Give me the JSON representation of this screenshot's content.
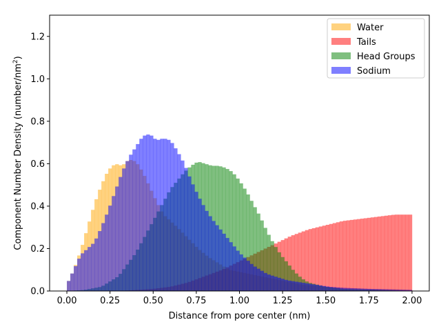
{
  "chart_data": {
    "type": "histogram",
    "xlabel": "Distance from pore center (nm)",
    "ylabel": "Component Number Density (number/nm",
    "ylabel_sup": "2",
    "ylabel_end": ")",
    "xlim": [
      -0.1,
      2.1
    ],
    "ylim": [
      0.0,
      1.3
    ],
    "xticks": [
      0.0,
      0.25,
      0.5,
      0.75,
      1.0,
      1.25,
      1.5,
      1.75,
      2.0
    ],
    "xtick_labels": [
      "0.00",
      "0.25",
      "0.50",
      "0.75",
      "1.00",
      "1.25",
      "1.50",
      "1.75",
      "2.00"
    ],
    "yticks": [
      0.0,
      0.2,
      0.4,
      0.6,
      0.8,
      1.0,
      1.2
    ],
    "ytick_labels": [
      "0.0",
      "0.2",
      "0.4",
      "0.6",
      "0.8",
      "1.0",
      "1.2"
    ],
    "legend_position": "top-right",
    "series": [
      {
        "name": "Water",
        "color": "#ffa500",
        "alpha": 0.5,
        "points": [
          [
            0.0,
            0.03
          ],
          [
            0.04,
            0.1
          ],
          [
            0.08,
            0.19
          ],
          [
            0.12,
            0.3
          ],
          [
            0.16,
            0.41
          ],
          [
            0.2,
            0.5
          ],
          [
            0.24,
            0.57
          ],
          [
            0.28,
            0.6
          ],
          [
            0.32,
            0.59
          ],
          [
            0.36,
            0.62
          ],
          [
            0.4,
            0.61
          ],
          [
            0.44,
            0.56
          ],
          [
            0.48,
            0.49
          ],
          [
            0.52,
            0.42
          ],
          [
            0.56,
            0.36
          ],
          [
            0.6,
            0.33
          ],
          [
            0.64,
            0.3
          ],
          [
            0.7,
            0.25
          ],
          [
            0.76,
            0.2
          ],
          [
            0.82,
            0.16
          ],
          [
            0.88,
            0.13
          ],
          [
            0.94,
            0.1
          ],
          [
            1.0,
            0.09
          ],
          [
            1.06,
            0.08
          ],
          [
            1.12,
            0.07
          ],
          [
            1.18,
            0.06
          ],
          [
            1.24,
            0.05
          ],
          [
            1.3,
            0.04
          ],
          [
            1.36,
            0.03
          ],
          [
            1.42,
            0.025
          ],
          [
            1.5,
            0.02
          ],
          [
            1.6,
            0.015
          ],
          [
            1.75,
            0.01
          ],
          [
            1.9,
            0.008
          ],
          [
            2.0,
            0.005
          ]
        ]
      },
      {
        "name": "Tails",
        "color": "#ff0000",
        "alpha": 0.5,
        "points": [
          [
            0.0,
            0.0
          ],
          [
            0.3,
            0.0
          ],
          [
            0.4,
            0.005
          ],
          [
            0.5,
            0.01
          ],
          [
            0.6,
            0.02
          ],
          [
            0.7,
            0.04
          ],
          [
            0.8,
            0.07
          ],
          [
            0.9,
            0.1
          ],
          [
            1.0,
            0.14
          ],
          [
            1.1,
            0.18
          ],
          [
            1.2,
            0.22
          ],
          [
            1.3,
            0.26
          ],
          [
            1.4,
            0.29
          ],
          [
            1.5,
            0.31
          ],
          [
            1.6,
            0.33
          ],
          [
            1.7,
            0.34
          ],
          [
            1.8,
            0.35
          ],
          [
            1.9,
            0.36
          ],
          [
            2.0,
            0.36
          ]
        ]
      },
      {
        "name": "Head Groups",
        "color": "#008000",
        "alpha": 0.5,
        "points": [
          [
            0.0,
            0.0
          ],
          [
            0.1,
            0.005
          ],
          [
            0.2,
            0.02
          ],
          [
            0.3,
            0.07
          ],
          [
            0.4,
            0.18
          ],
          [
            0.5,
            0.33
          ],
          [
            0.6,
            0.48
          ],
          [
            0.68,
            0.56
          ],
          [
            0.72,
            0.59
          ],
          [
            0.76,
            0.61
          ],
          [
            0.8,
            0.6
          ],
          [
            0.84,
            0.59
          ],
          [
            0.88,
            0.59
          ],
          [
            0.92,
            0.58
          ],
          [
            0.96,
            0.56
          ],
          [
            1.0,
            0.52
          ],
          [
            1.04,
            0.47
          ],
          [
            1.08,
            0.41
          ],
          [
            1.12,
            0.35
          ],
          [
            1.16,
            0.28
          ],
          [
            1.2,
            0.22
          ],
          [
            1.24,
            0.17
          ],
          [
            1.28,
            0.13
          ],
          [
            1.32,
            0.09
          ],
          [
            1.36,
            0.06
          ],
          [
            1.4,
            0.04
          ],
          [
            1.45,
            0.03
          ],
          [
            1.5,
            0.02
          ],
          [
            1.6,
            0.01
          ],
          [
            1.8,
            0.005
          ],
          [
            2.0,
            0.0
          ]
        ]
      },
      {
        "name": "Sodium",
        "color": "#0000ff",
        "alpha": 0.5,
        "points": [
          [
            0.0,
            0.03
          ],
          [
            0.04,
            0.1
          ],
          [
            0.08,
            0.17
          ],
          [
            0.12,
            0.2
          ],
          [
            0.16,
            0.23
          ],
          [
            0.2,
            0.3
          ],
          [
            0.24,
            0.38
          ],
          [
            0.28,
            0.47
          ],
          [
            0.32,
            0.56
          ],
          [
            0.36,
            0.63
          ],
          [
            0.4,
            0.68
          ],
          [
            0.44,
            0.73
          ],
          [
            0.48,
            0.74
          ],
          [
            0.52,
            0.71
          ],
          [
            0.56,
            0.72
          ],
          [
            0.6,
            0.71
          ],
          [
            0.64,
            0.66
          ],
          [
            0.68,
            0.6
          ],
          [
            0.72,
            0.52
          ],
          [
            0.76,
            0.45
          ],
          [
            0.8,
            0.39
          ],
          [
            0.84,
            0.34
          ],
          [
            0.88,
            0.3
          ],
          [
            0.92,
            0.26
          ],
          [
            0.96,
            0.22
          ],
          [
            1.0,
            0.18
          ],
          [
            1.04,
            0.15
          ],
          [
            1.08,
            0.12
          ],
          [
            1.12,
            0.1
          ],
          [
            1.16,
            0.08
          ],
          [
            1.2,
            0.07
          ],
          [
            1.28,
            0.05
          ],
          [
            1.36,
            0.04
          ],
          [
            1.44,
            0.03
          ],
          [
            1.52,
            0.02
          ],
          [
            1.6,
            0.015
          ],
          [
            1.75,
            0.01
          ],
          [
            1.9,
            0.007
          ],
          [
            2.0,
            0.005
          ]
        ]
      }
    ]
  }
}
